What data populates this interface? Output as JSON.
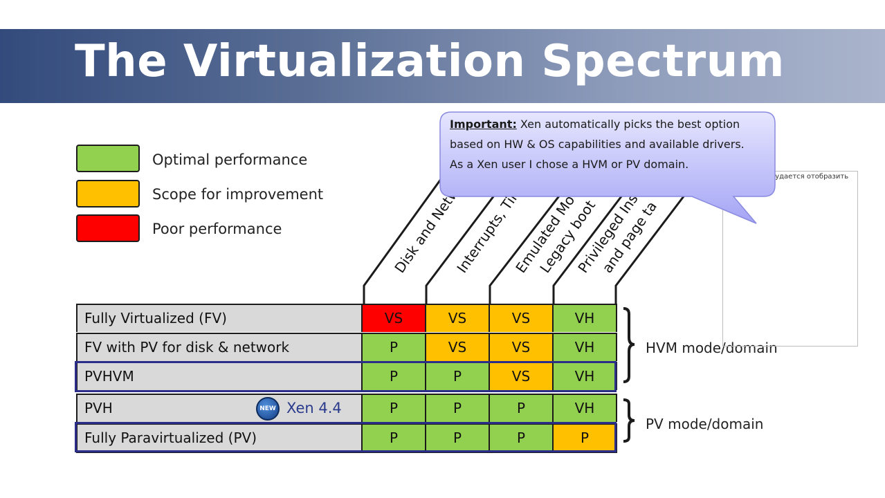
{
  "title": "The Virtualization Spectrum",
  "colors": {
    "green": "#92d050",
    "orange": "#ffc000",
    "red": "#ff0000",
    "label_gray": "#d9d9d9",
    "highlight": "#2a2e8a"
  },
  "legend": [
    {
      "label": "Optimal performance",
      "color": "#92d050"
    },
    {
      "label": "Scope for improvement",
      "color": "#ffc000"
    },
    {
      "label": "Poor performance",
      "color": "#ff0000"
    }
  ],
  "columns": [
    "Disk and Netw",
    "Interrupts, Tim",
    "Emulated Mo",
    "Legacy boot",
    "Privileged Ins",
    "and page ta"
  ],
  "rows": [
    {
      "label": "Fully Virtualized (FV)",
      "cells": [
        {
          "v": "VS",
          "c": "red"
        },
        {
          "v": "VS",
          "c": "orange"
        },
        {
          "v": "VS",
          "c": "orange"
        },
        {
          "v": "VH",
          "c": "green"
        }
      ]
    },
    {
      "label": "FV with PV for disk & network",
      "cells": [
        {
          "v": "P",
          "c": "green"
        },
        {
          "v": "VS",
          "c": "orange"
        },
        {
          "v": "VS",
          "c": "orange"
        },
        {
          "v": "VH",
          "c": "green"
        }
      ]
    },
    {
      "label": "PVHVM",
      "cells": [
        {
          "v": "P",
          "c": "green"
        },
        {
          "v": "P",
          "c": "green"
        },
        {
          "v": "VS",
          "c": "orange"
        },
        {
          "v": "VH",
          "c": "green"
        }
      ]
    },
    {
      "label": "PVH",
      "cells": [
        {
          "v": "P",
          "c": "green"
        },
        {
          "v": "P",
          "c": "green"
        },
        {
          "v": "P",
          "c": "green"
        },
        {
          "v": "VH",
          "c": "green"
        }
      ]
    },
    {
      "label": "Fully Paravirtualized (PV)",
      "cells": [
        {
          "v": "P",
          "c": "green"
        },
        {
          "v": "P",
          "c": "green"
        },
        {
          "v": "P",
          "c": "green"
        },
        {
          "v": "P",
          "c": "orange"
        }
      ]
    }
  ],
  "badge": {
    "icon_text": "NEW",
    "label": "Xen 4.4"
  },
  "groups": {
    "hvm": "HVM mode/domain",
    "pv": "PV mode/domain"
  },
  "callout": {
    "prefix": "Important:",
    "line1": " Xen automatically picks the best option based on HW & OS capabilities and available drivers.",
    "line2": "As a Xen user I chose a HVM or PV domain."
  },
  "broken_image_text": "Сейчас не удается отобразить рисунок."
}
